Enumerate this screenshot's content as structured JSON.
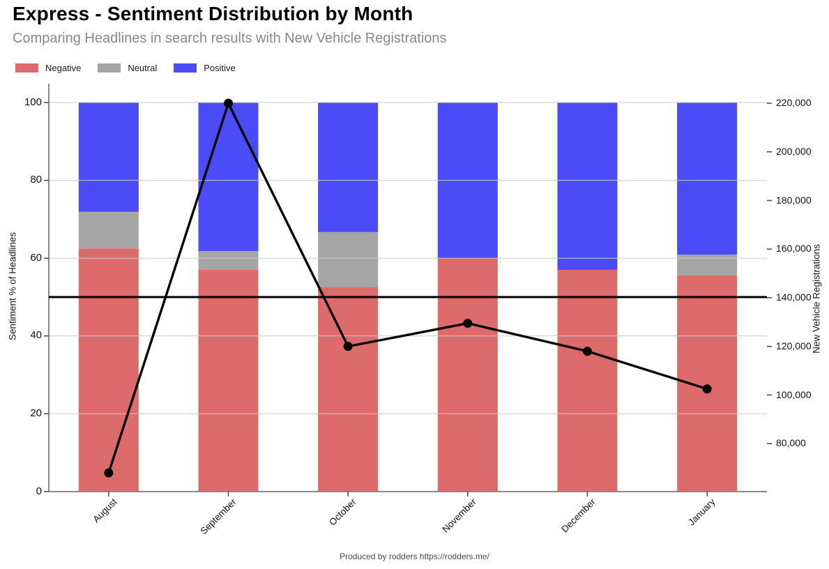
{
  "header": {
    "title": "Express - Sentiment Distribution by Month",
    "subtitle": "Comparing Headlines in search results with New Vehicle Registrations"
  },
  "legend": [
    {
      "label": "Negative",
      "color": "#dd6b6b"
    },
    {
      "label": "Neutral",
      "color": "#a5a5a5"
    },
    {
      "label": "Positive",
      "color": "#4b4bf7"
    }
  ],
  "footer": {
    "text": "Produced by rodders https://rodders.me/"
  },
  "chart_data": {
    "type": "bar",
    "subtype": "stacked-percent-bars-with-line-overlay",
    "title": "Express - Sentiment Distribution by Month",
    "subtitle": "Comparing Headlines in search results with New Vehicle Registrations",
    "categories": [
      "August",
      "September",
      "October",
      "November",
      "December",
      "January"
    ],
    "bar_series": [
      {
        "name": "Negative",
        "color": "#dd6b6b",
        "values": [
          62.5,
          57.0,
          52.5,
          60.0,
          57.0,
          55.6
        ]
      },
      {
        "name": "Neutral",
        "color": "#a5a5a5",
        "values": [
          9.4,
          4.8,
          14.2,
          0,
          0,
          5.3
        ]
      },
      {
        "name": "Positive",
        "color": "#4b4bf7",
        "values": [
          28.1,
          38.2,
          33.3,
          40.0,
          43.0,
          39.1
        ]
      }
    ],
    "line_series": {
      "name": "New Vehicle Registrations",
      "color": "#000000",
      "values": [
        68000,
        220000,
        120000,
        129500,
        118000,
        102500
      ]
    },
    "reference_line": {
      "axis": "left",
      "value": 50,
      "color": "#000000"
    },
    "left_axis": {
      "label": "Sentiment % of Headlines",
      "ticks": [
        0,
        20,
        40,
        60,
        80,
        100
      ],
      "range": [
        0,
        105
      ]
    },
    "right_axis": {
      "label": "New Vehicle Registrations",
      "ticks": [
        80000,
        100000,
        120000,
        140000,
        160000,
        180000,
        200000,
        220000
      ],
      "tick_labels": [
        "80,000",
        "100,000",
        "120,000",
        "140,000",
        "160,000",
        "180,000",
        "200,000",
        "220,000"
      ],
      "range": [
        60300,
        228000
      ]
    },
    "grid": "horizontal",
    "legend_position": "top-left"
  }
}
